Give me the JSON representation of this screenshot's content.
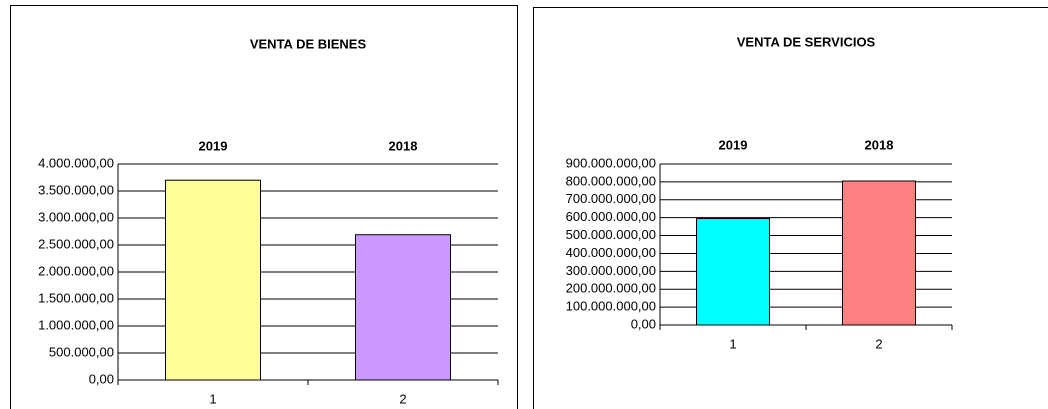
{
  "chart_data": [
    {
      "type": "bar",
      "title": "VENTA  DE  BIENES",
      "categories": [
        "1",
        "2"
      ],
      "values": [
        3700000,
        2690000
      ],
      "colors": [
        "#ffff99",
        "#cc99ff"
      ],
      "annotations": [
        "2019",
        "2018"
      ],
      "ylim": [
        0,
        4000000
      ],
      "yticks": [
        {
          "value": 0,
          "label": "0,00"
        },
        {
          "value": 500000,
          "label": "500.000,00"
        },
        {
          "value": 1000000,
          "label": "1.000.000,00"
        },
        {
          "value": 1500000,
          "label": "1.500.000,00"
        },
        {
          "value": 2000000,
          "label": "2.000.000,00"
        },
        {
          "value": 2500000,
          "label": "2.500.000,00"
        },
        {
          "value": 3000000,
          "label": "3.000.000,00"
        },
        {
          "value": 3500000,
          "label": "3.500.000,00"
        },
        {
          "value": 4000000,
          "label": "4.000.000,00"
        }
      ],
      "grid": true
    },
    {
      "type": "bar",
      "title": "VENTA  DE  SERVICIOS",
      "categories": [
        "1",
        "2"
      ],
      "values": [
        595000000,
        805000000
      ],
      "colors": [
        "#00ffff",
        "#ff8080"
      ],
      "annotations": [
        "2019",
        "2018"
      ],
      "ylim": [
        0,
        900000000
      ],
      "yticks": [
        {
          "value": 0,
          "label": "0,00"
        },
        {
          "value": 100000000,
          "label": "100.000.000,00"
        },
        {
          "value": 200000000,
          "label": "200.000.000,00"
        },
        {
          "value": 300000000,
          "label": "300.000.000,00"
        },
        {
          "value": 400000000,
          "label": "400.000.000,00"
        },
        {
          "value": 500000000,
          "label": "500.000.000,00"
        },
        {
          "value": 600000000,
          "label": "600.000.000,00"
        },
        {
          "value": 700000000,
          "label": "700.000.000,00"
        },
        {
          "value": 800000000,
          "label": "800.000.000,00"
        },
        {
          "value": 900000000,
          "label": "900.000.000,00"
        }
      ],
      "grid": true
    }
  ]
}
